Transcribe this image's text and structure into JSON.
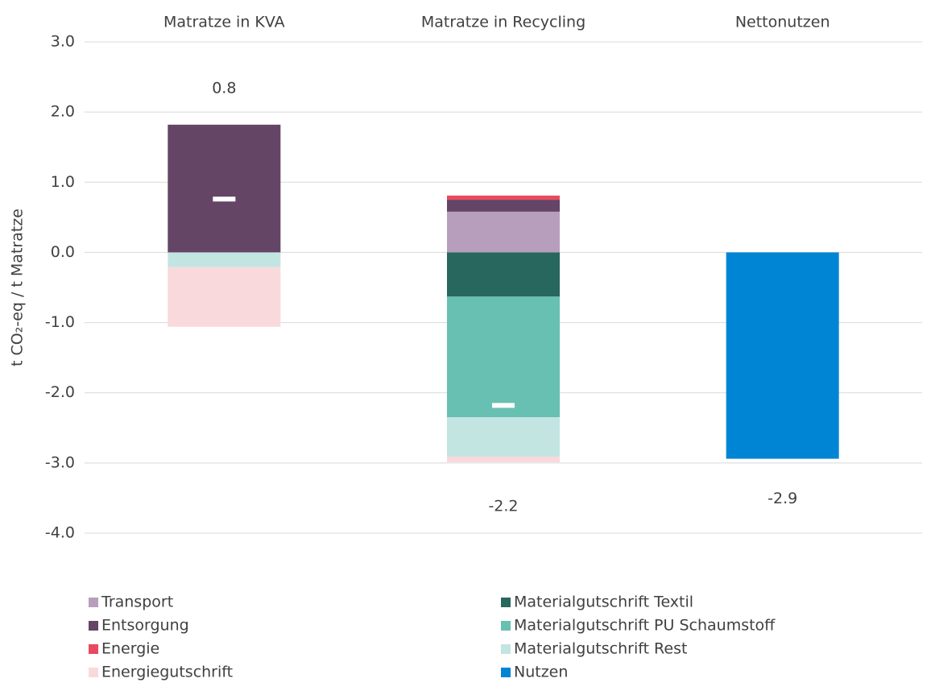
{
  "chart_data": {
    "type": "stacked_bar",
    "categories": [
      "Matratze in KVA",
      "Matratze in Recycling",
      "Nettonutzen"
    ],
    "y_label": "t CO₂-eq  / t Matratze",
    "ylim": [
      -4,
      3
    ],
    "yticks": [
      {
        "value": 3,
        "label": "3.0"
      },
      {
        "value": 2,
        "label": "2.0"
      },
      {
        "value": 1,
        "label": "1.0"
      },
      {
        "value": 0,
        "label": "0.0"
      },
      {
        "value": -1,
        "label": "-1.0"
      },
      {
        "value": -2,
        "label": "-2.0"
      },
      {
        "value": -3,
        "label": "-3.0"
      },
      {
        "value": -4,
        "label": "-4.0"
      }
    ],
    "grid": true,
    "series": [
      {
        "name": "Transport",
        "color": "#b89ebd",
        "values": [
          null,
          0.58,
          null
        ]
      },
      {
        "name": "Entsorgung",
        "color": "#654566",
        "values": [
          1.82,
          0.17,
          null
        ]
      },
      {
        "name": "Energie",
        "color": "#e84a5f",
        "values": [
          null,
          0.06,
          null
        ]
      },
      {
        "name": "Materialgutschrift Textil",
        "color": "#28675e",
        "values": [
          null,
          -0.63,
          null
        ]
      },
      {
        "name": "Materialgutschrift PU Schaumstoff",
        "color": "#68c0b2",
        "values": [
          null,
          -1.72,
          null
        ]
      },
      {
        "name": "Materialgutschrift Rest",
        "color": "#c2e5e2",
        "values": [
          -0.21,
          -0.56,
          null
        ]
      },
      {
        "name": "Energiegutschrift",
        "color": "#f9d9dc",
        "values": [
          -0.85,
          -0.08,
          null
        ]
      },
      {
        "name": "Nutzen",
        "color": "#0085d4",
        "values": [
          null,
          null,
          -2.94
        ],
        "value_labels": [
          null,
          null,
          "-2.9"
        ]
      }
    ],
    "totals": {
      "color": "#ffffff",
      "values": [
        0.76,
        -2.18,
        null
      ],
      "value_labels": [
        "0.8",
        "-2.2",
        null
      ]
    }
  }
}
